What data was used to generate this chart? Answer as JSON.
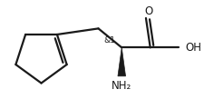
{
  "bg_color": "#ffffff",
  "line_color": "#1a1a1a",
  "line_width": 1.6,
  "figsize": [
    2.25,
    1.2
  ],
  "dpi": 100,
  "chiral_label": "&1",
  "chiral_label_fontsize": 6.5,
  "nh2_label": "NH₂",
  "nh2_fontsize": 8.5,
  "o_label": "O",
  "o_fontsize": 8.5,
  "oh_label": "OH",
  "oh_fontsize": 8.5
}
